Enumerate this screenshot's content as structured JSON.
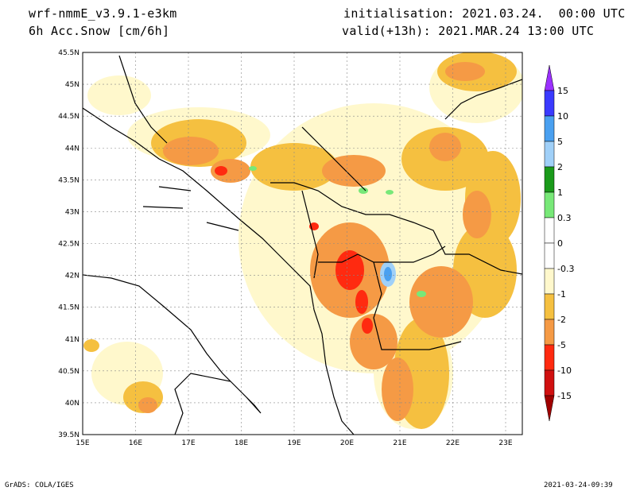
{
  "header": {
    "model": "wrf-nmmE_v3.9.1-e3km",
    "field": "6h Acc.Snow [cm/6h]",
    "initialisation": "initialisation: 2021.03.24.  00:00 UTC",
    "valid": "valid(+13h): 2021.MAR.24 13:00 UTC"
  },
  "footer": {
    "credit": "GrADS: COLA/IGES",
    "timestamp": "2021-03-24-09:39"
  },
  "map": {
    "lat_labels": [
      "45.5N",
      "45N",
      "44.5N",
      "44N",
      "43.5N",
      "43N",
      "42.5N",
      "42N",
      "41.5N",
      "41N",
      "40.5N",
      "40N",
      "39.5N"
    ],
    "lon_labels": [
      "15E",
      "16E",
      "17E",
      "18E",
      "19E",
      "20E",
      "21E",
      "22E",
      "23E"
    ]
  },
  "colorbar": {
    "labels": [
      "15",
      "10",
      "5",
      "2",
      "1",
      "0.3",
      "0",
      "-0.3",
      "-1",
      "-2",
      "-5",
      "-10",
      "-15"
    ],
    "colors": [
      "#9b30ff",
      "#3a3aff",
      "#4aa0f0",
      "#a0d0f8",
      "#1a9a1a",
      "#78e878",
      "#ffffff",
      "#ffffff",
      "#fff8cc",
      "#f5c040",
      "#f59a45",
      "#ff2a10",
      "#d01010",
      "#a00000"
    ]
  }
}
